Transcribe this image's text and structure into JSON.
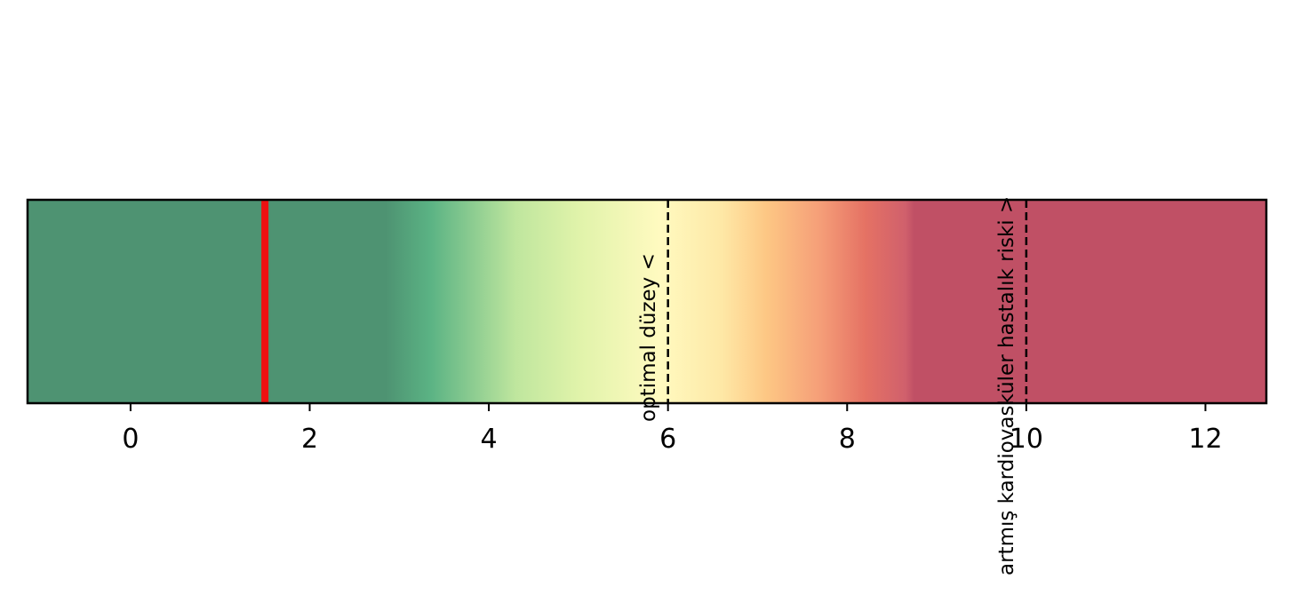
{
  "chart_data": {
    "type": "gauge",
    "xlim": [
      -1.15,
      12.68
    ],
    "xticks": [
      0,
      2,
      4,
      6,
      8,
      10,
      12
    ],
    "xtick_labels": [
      "0",
      "2",
      "4",
      "6",
      "8",
      "10",
      "12"
    ],
    "grid": false,
    "marker": {
      "value": 1.5,
      "color": "#ee1111"
    },
    "thresholds": [
      {
        "value": 6,
        "label": "optimal düzey <"
      },
      {
        "value": 10,
        "label": "artmış kardiovasküler hastalık riski >"
      }
    ],
    "gradient_stops": [
      {
        "value": -1.15,
        "color": "#4e9372"
      },
      {
        "value": 2.85,
        "color": "#4e9372"
      },
      {
        "value": 3.35,
        "color": "#5bb384"
      },
      {
        "value": 4.3,
        "color": "#bfe69e"
      },
      {
        "value": 5.0,
        "color": "#e0f3aa"
      },
      {
        "value": 5.9,
        "color": "#fffac0"
      },
      {
        "value": 6.6,
        "color": "#fee8a6"
      },
      {
        "value": 7.1,
        "color": "#fdc784"
      },
      {
        "value": 7.7,
        "color": "#f59e78"
      },
      {
        "value": 8.2,
        "color": "#e57264"
      },
      {
        "value": 8.65,
        "color": "#d0606c"
      },
      {
        "value": 8.75,
        "color": "#c05065"
      },
      {
        "value": 12.68,
        "color": "#c05065"
      }
    ]
  }
}
